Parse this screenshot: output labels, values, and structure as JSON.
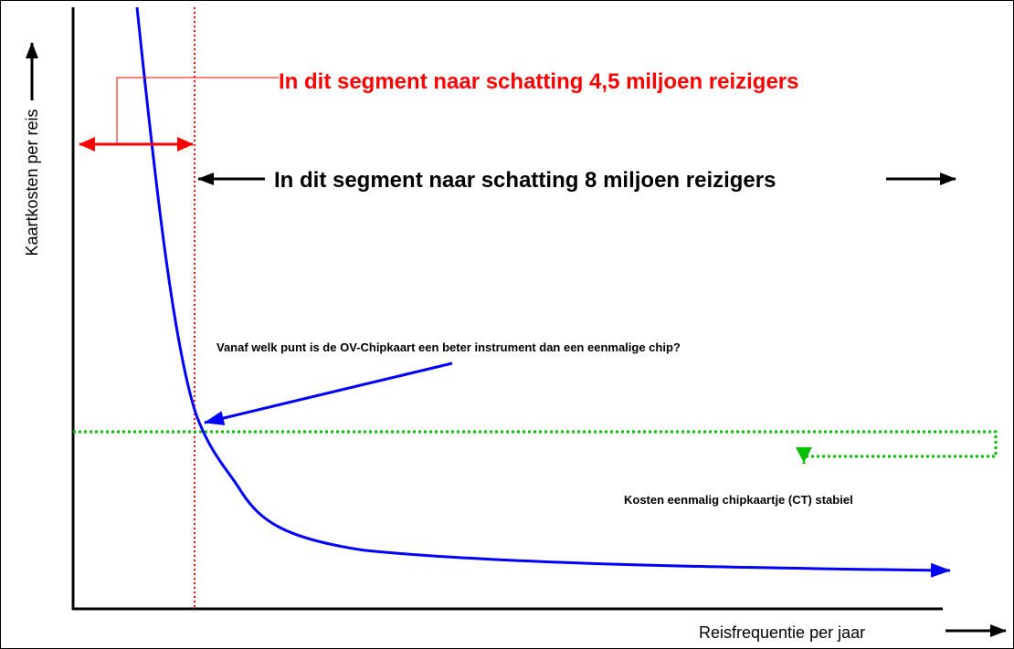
{
  "axes": {
    "y_label": "Kaartkosten per reis",
    "x_label": "Reisfrequentie per jaar"
  },
  "annotations": {
    "segment_small": "In dit segment naar schatting 4,5 miljoen reizigers",
    "segment_large": "In dit segment naar schatting 8 miljoen reizigers",
    "question": "Vanaf welk punt is de OV-Chipkaart een beter instrument dan een eenmalige chip?",
    "stable_cost": "Kosten eenmalig chipkaartje (CT) stabiel"
  }
}
